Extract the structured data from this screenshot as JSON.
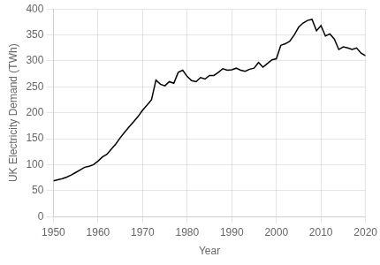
{
  "chart_data": {
    "type": "line",
    "xlabel": "Year",
    "ylabel": "UK Electricity Demand (TWh)",
    "x": [
      1950,
      1951,
      1952,
      1953,
      1954,
      1955,
      1956,
      1957,
      1958,
      1959,
      1960,
      1961,
      1962,
      1963,
      1964,
      1965,
      1966,
      1967,
      1968,
      1969,
      1970,
      1971,
      1972,
      1973,
      1974,
      1975,
      1976,
      1977,
      1978,
      1979,
      1980,
      1981,
      1982,
      1983,
      1984,
      1985,
      1986,
      1987,
      1988,
      1989,
      1990,
      1991,
      1992,
      1993,
      1994,
      1995,
      1996,
      1997,
      1998,
      1999,
      2000,
      2001,
      2002,
      2003,
      2004,
      2005,
      2006,
      2007,
      2008,
      2009,
      2010,
      2011,
      2012,
      2013,
      2014,
      2015,
      2016,
      2017,
      2018,
      2019,
      2020
    ],
    "values": [
      69,
      71,
      73,
      76,
      80,
      85,
      90,
      95,
      97,
      100,
      107,
      115,
      120,
      130,
      140,
      152,
      163,
      173,
      183,
      193,
      205,
      215,
      225,
      263,
      255,
      252,
      260,
      257,
      278,
      282,
      270,
      262,
      260,
      268,
      265,
      272,
      272,
      278,
      285,
      282,
      283,
      286,
      282,
      280,
      284,
      286,
      297,
      288,
      295,
      302,
      304,
      330,
      333,
      338,
      350,
      365,
      373,
      378,
      380,
      358,
      368,
      348,
      352,
      342,
      322,
      327,
      325,
      322,
      325,
      315,
      310
    ],
    "color": "#000000",
    "xlim": [
      1950,
      2020
    ],
    "ylim": [
      0,
      400
    ],
    "xticks": [
      1950,
      1960,
      1970,
      1980,
      1990,
      2000,
      2010,
      2020
    ],
    "yticks": [
      0,
      50,
      100,
      150,
      200,
      250,
      300,
      350,
      400
    ],
    "grid": true
  }
}
